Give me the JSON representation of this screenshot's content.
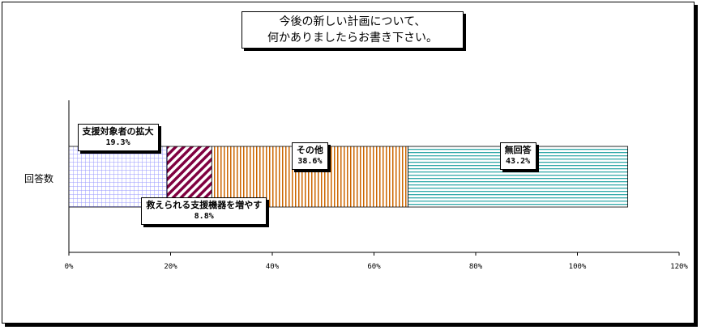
{
  "chart_data": {
    "type": "bar",
    "orientation": "horizontal",
    "stacked": true,
    "title_lines": [
      "今後の新しい計画について、",
      "何かありましたらお書き下さい。"
    ],
    "categories": [
      "回答数"
    ],
    "series": [
      {
        "name": "支援対象者の拡大",
        "value_label": "19.3%",
        "values": [
          19.3
        ],
        "color": "#9999ff",
        "pattern": "grid"
      },
      {
        "name": "救えられる支援機器を増やす",
        "value_label": "8.8%",
        "values": [
          8.8
        ],
        "color": "#800040",
        "pattern": "diagonal"
      },
      {
        "name": "その他",
        "value_label": "38.6%",
        "values": [
          38.6
        ],
        "color": "#cc6600",
        "pattern": "vertical"
      },
      {
        "name": "無回答",
        "value_label": "43.2%",
        "values": [
          43.2
        ],
        "color": "#33aaaa",
        "pattern": "horizontal"
      }
    ],
    "xlim": [
      0,
      120
    ],
    "x_ticks": [
      "0%",
      "20%",
      "40%",
      "60%",
      "80%",
      "100%",
      "120%"
    ],
    "grid": false
  }
}
